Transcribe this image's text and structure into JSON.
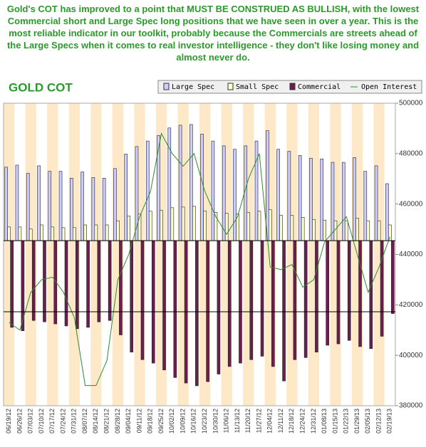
{
  "chart_data": {
    "type": "bar",
    "annotation": "Gold's COT has improved to a point that MUST BE CONSTRUED AS BULLISH, with the lowest Commercial short and Large Spec long positions that we have seen in over a year. This is the most reliable indicator in our toolkit, probably because the Commercials are streets ahead of the Large Specs when it comes to real investor intelligence - they don't like losing money and almost never do.",
    "title": "GOLD COT",
    "categories": [
      "06/19/12",
      "06/26/12",
      "07/03/12",
      "07/10/12",
      "07/17/12",
      "07/24/12",
      "07/31/12",
      "08/07/12",
      "08/14/12",
      "08/21/12",
      "08/28/12",
      "09/04/12",
      "09/11/12",
      "09/18/12",
      "09/25/12",
      "10/02/12",
      "10/09/12",
      "10/16/12",
      "10/23/12",
      "10/30/12",
      "11/06/12",
      "11/13/12",
      "11/20/12",
      "11/27/12",
      "12/04/12",
      "12/11/12",
      "12/18/12",
      "12/24/12",
      "12/31/12",
      "01/08/13",
      "01/15/13",
      "01/22/13",
      "01/29/13",
      "02/05/13",
      "02/12/13",
      "02/19/13"
    ],
    "ylim": [
      -240000,
      200000
    ],
    "y2lim": [
      380000,
      500000
    ],
    "y2ticks": [
      380000,
      400000,
      420000,
      440000,
      460000,
      480000,
      500000
    ],
    "series": [
      {
        "name": "Large Spec",
        "color": "#ccccff",
        "values": [
          107000,
          110000,
          98000,
          109000,
          101000,
          101000,
          91000,
          100000,
          92000,
          91000,
          105000,
          126000,
          137000,
          145000,
          153000,
          164000,
          168000,
          169000,
          155000,
          145000,
          138000,
          133000,
          138000,
          145000,
          160000,
          133000,
          130000,
          124000,
          120000,
          119000,
          114000,
          114000,
          121000,
          101000,
          109000,
          83000
        ]
      },
      {
        "name": "Small Spec",
        "color": "#ffffcc",
        "values": [
          20000,
          20000,
          17000,
          23000,
          20000,
          19000,
          19000,
          23000,
          23000,
          23000,
          29000,
          36000,
          39000,
          43000,
          44000,
          48000,
          49000,
          50000,
          43000,
          41000,
          40000,
          39000,
          41000,
          43000,
          45000,
          37000,
          37000,
          34000,
          31000,
          30000,
          29000,
          29000,
          33000,
          29000,
          29000,
          23000
        ]
      },
      {
        "name": "Commercial",
        "color": "#6b1f4f",
        "values": [
          -126000,
          -131000,
          -116000,
          -118000,
          -121000,
          -124000,
          -128000,
          -126000,
          -118000,
          -116000,
          -137000,
          -162000,
          -173000,
          -178000,
          -188000,
          -199000,
          -207000,
          -211000,
          -205000,
          -194000,
          -183000,
          -178000,
          -173000,
          -168000,
          -183000,
          -204000,
          -173000,
          -170000,
          -162000,
          -152000,
          -150000,
          -145000,
          -154000,
          -157000,
          -139000,
          -106000
        ]
      },
      {
        "name": "Open Interest",
        "color": "#2e8b2e",
        "axis": "y2",
        "values": [
          413000,
          410000,
          425000,
          430000,
          431000,
          425000,
          415000,
          388000,
          388000,
          398000,
          430000,
          440000,
          455000,
          465000,
          488000,
          480000,
          475000,
          480000,
          465000,
          455000,
          448000,
          455000,
          470000,
          480000,
          435000,
          434000,
          436000,
          427000,
          430000,
          445000,
          450000,
          455000,
          440000,
          425000,
          435000,
          447000
        ]
      }
    ]
  }
}
